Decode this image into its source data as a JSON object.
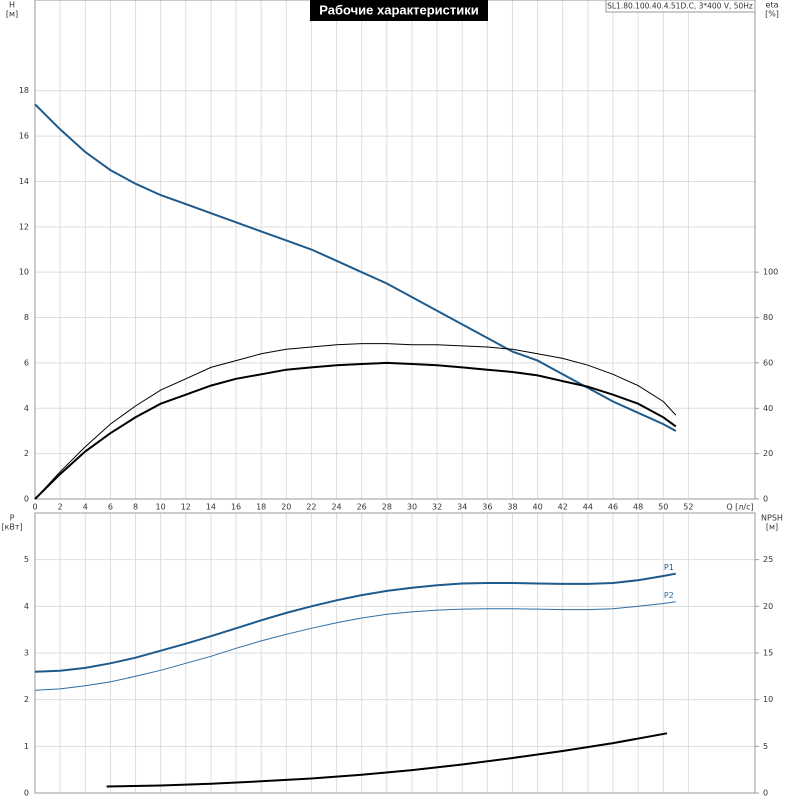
{
  "chart_data": [
    {
      "type": "line",
      "title": "Рабочие характеристики",
      "subtitle": "SL1.80.100.40.4.51D.C, 3*400 V, 50Hz",
      "xlabel": "Q [л/с]",
      "ylabel": [
        "H",
        "[м]"
      ],
      "y2label": [
        "eta",
        "[%]"
      ],
      "xlim": [
        0,
        57.3
      ],
      "xticks": [
        0,
        2,
        4,
        6,
        8,
        10,
        12,
        14,
        16,
        18,
        20,
        22,
        24,
        26,
        28,
        30,
        32,
        34,
        36,
        38,
        40,
        42,
        44,
        46,
        48,
        50,
        52
      ],
      "ylim": [
        0,
        22
      ],
      "yticks": [
        0,
        2,
        4,
        6,
        8,
        10,
        12,
        14,
        16,
        18
      ],
      "y2lim": [
        0,
        220
      ],
      "y2ticks": [
        0,
        20,
        40,
        60,
        80,
        100
      ],
      "grid": true,
      "x": [
        0,
        2,
        4,
        6,
        8,
        10,
        12,
        14,
        16,
        18,
        20,
        22,
        24,
        26,
        28,
        30,
        32,
        34,
        36,
        38,
        40,
        42,
        44,
        46,
        48,
        50,
        51
      ],
      "series": [
        {
          "color": "#1f5a8c",
          "width": 2,
          "values": [
            17.4,
            16.3,
            15.3,
            14.5,
            13.9,
            13.4,
            13.0,
            12.6,
            12.2,
            11.8,
            11.4,
            11.0,
            10.5,
            10.0,
            9.5,
            8.9,
            8.3,
            7.7,
            7.1,
            6.5,
            6.1,
            5.5,
            4.9,
            4.3,
            3.8,
            3.3,
            3.0
          ]
        },
        {
          "color": "#000000",
          "width": 1,
          "axis": "y2",
          "values": [
            0,
            12,
            23,
            33,
            41,
            48,
            53,
            58,
            61,
            64,
            66,
            67,
            68,
            68.5,
            68.5,
            68,
            68,
            67.5,
            67,
            66,
            64,
            62,
            59,
            55,
            50,
            43,
            37
          ]
        },
        {
          "color": "#000000",
          "width": 2,
          "axis": "y2",
          "values": [
            0,
            11,
            21,
            29,
            36,
            42,
            46,
            50,
            53,
            55,
            57,
            58,
            59,
            59.5,
            60,
            59.5,
            59,
            58,
            57,
            56,
            54.5,
            52,
            49.5,
            46,
            42,
            36,
            32
          ]
        }
      ]
    },
    {
      "type": "line",
      "ylabel": [
        "P",
        "[кВт]"
      ],
      "y2label": [
        "NPSH",
        "[м]"
      ],
      "xlim": [
        0,
        57.3
      ],
      "ylim": [
        0,
        6
      ],
      "yticks": [
        0,
        1,
        2,
        3,
        4,
        5
      ],
      "y2lim": [
        0,
        30
      ],
      "y2ticks": [
        0,
        5,
        10,
        15,
        20,
        25
      ],
      "grid": true,
      "x": [
        0,
        2,
        4,
        6,
        8,
        10,
        12,
        14,
        16,
        18,
        20,
        22,
        24,
        26,
        28,
        30,
        32,
        34,
        36,
        38,
        40,
        42,
        44,
        46,
        48,
        50,
        51
      ],
      "series": [
        {
          "name": "P1",
          "color": "#1f5a8c",
          "width": 2,
          "values": [
            2.6,
            2.62,
            2.68,
            2.78,
            2.9,
            3.05,
            3.2,
            3.36,
            3.53,
            3.7,
            3.86,
            4.0,
            4.13,
            4.24,
            4.33,
            4.4,
            4.45,
            4.49,
            4.5,
            4.5,
            4.49,
            4.48,
            4.48,
            4.5,
            4.56,
            4.65,
            4.7
          ]
        },
        {
          "name": "P2",
          "color": "#2e6da4",
          "width": 1,
          "values": [
            2.2,
            2.23,
            2.3,
            2.38,
            2.5,
            2.63,
            2.78,
            2.93,
            3.1,
            3.26,
            3.4,
            3.53,
            3.65,
            3.75,
            3.83,
            3.88,
            3.92,
            3.94,
            3.95,
            3.95,
            3.94,
            3.93,
            3.93,
            3.95,
            4.0,
            4.06,
            4.1
          ]
        },
        {
          "color": "#000000",
          "width": 2,
          "axis": "y2",
          "x": [
            5.7,
            10,
            14,
            18,
            22,
            26,
            30,
            34,
            38,
            42,
            46,
            50.3
          ],
          "values": [
            0.7,
            0.8,
            1.0,
            1.25,
            1.55,
            1.95,
            2.45,
            3.05,
            3.75,
            4.5,
            5.35,
            6.4
          ]
        }
      ]
    }
  ]
}
